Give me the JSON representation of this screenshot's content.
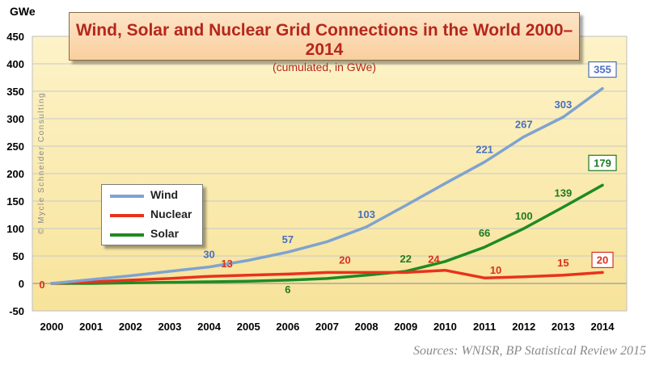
{
  "chart_data": {
    "type": "line",
    "title": "Wind, Solar and Nuclear Grid Connections in the World 2000–2014",
    "subtitle": "(cumulated, in GWe)",
    "ylabel": "GWe",
    "ylim": [
      -50,
      450
    ],
    "yticks": [
      -50,
      0,
      50,
      100,
      150,
      200,
      250,
      300,
      350,
      400,
      450
    ],
    "categories": [
      "2000",
      "2001",
      "2002",
      "2003",
      "2004",
      "2005",
      "2006",
      "2007",
      "2008",
      "2009",
      "2010",
      "2011",
      "2012",
      "2013",
      "2014"
    ],
    "grid": "horizontal",
    "legend_position": "left-middle",
    "background_color": "#fbeeb3",
    "series": [
      {
        "name": "Wind",
        "color": "#7fa3cf",
        "values": [
          0,
          7,
          14,
          22,
          30,
          42,
          57,
          76,
          103,
          142,
          182,
          221,
          267,
          303,
          355
        ]
      },
      {
        "name": "Nuclear",
        "color": "#e8321e",
        "values": [
          0,
          3,
          6,
          9,
          13,
          15,
          17,
          20,
          20,
          20,
          24,
          10,
          12,
          15,
          20
        ]
      },
      {
        "name": "Solar",
        "color": "#1e8b22",
        "values": [
          0,
          0,
          1,
          2,
          3,
          4,
          6,
          9,
          15,
          22,
          40,
          66,
          100,
          139,
          179
        ]
      }
    ],
    "data_labels": [
      {
        "series": "Nuclear",
        "x": "2000",
        "y": 0,
        "text": "0",
        "color": "#d8321f",
        "boxed": false
      },
      {
        "series": "Wind",
        "x": "2004",
        "y": 30,
        "text": "30",
        "color": "#4a6fbf",
        "boxed": false
      },
      {
        "series": "Wind",
        "x": "2006",
        "y": 57,
        "text": "57",
        "color": "#4a6fbf",
        "boxed": false
      },
      {
        "series": "Wind",
        "x": "2008",
        "y": 103,
        "text": "103",
        "color": "#4a6fbf",
        "boxed": false
      },
      {
        "series": "Wind",
        "x": "2011",
        "y": 221,
        "text": "221",
        "color": "#4a6fbf",
        "boxed": false
      },
      {
        "series": "Wind",
        "x": "2012",
        "y": 267,
        "text": "267",
        "color": "#4a6fbf",
        "boxed": false
      },
      {
        "series": "Wind",
        "x": "2013",
        "y": 303,
        "text": "303",
        "color": "#4a6fbf",
        "boxed": false
      },
      {
        "series": "Wind",
        "x": "2014",
        "y": 355,
        "text": "355",
        "color": "#4a6fbf",
        "boxed": true
      },
      {
        "series": "Nuclear",
        "x": "2004",
        "y": 13,
        "text": "13",
        "color": "#d8321f",
        "boxed": false
      },
      {
        "series": "Nuclear",
        "x": "2007",
        "y": 20,
        "text": "20",
        "color": "#d8321f",
        "boxed": false
      },
      {
        "series": "Nuclear",
        "x": "2010",
        "y": 24,
        "text": "24",
        "color": "#d8321f",
        "boxed": false
      },
      {
        "series": "Nuclear",
        "x": "2011",
        "y": 10,
        "text": "10",
        "color": "#d8321f",
        "boxed": false
      },
      {
        "series": "Nuclear",
        "x": "2013",
        "y": 15,
        "text": "15",
        "color": "#d8321f",
        "boxed": false
      },
      {
        "series": "Nuclear",
        "x": "2014",
        "y": 20,
        "text": "20",
        "color": "#d8321f",
        "boxed": true
      },
      {
        "series": "Solar",
        "x": "2006",
        "y": 6,
        "text": "6",
        "color": "#1e7a22",
        "boxed": false
      },
      {
        "series": "Solar",
        "x": "2009",
        "y": 22,
        "text": "22",
        "color": "#1e7a22",
        "boxed": false
      },
      {
        "series": "Solar",
        "x": "2011",
        "y": 66,
        "text": "66",
        "color": "#1e7a22",
        "boxed": false
      },
      {
        "series": "Solar",
        "x": "2012",
        "y": 100,
        "text": "100",
        "color": "#1e7a22",
        "boxed": false
      },
      {
        "series": "Solar",
        "x": "2013",
        "y": 139,
        "text": "139",
        "color": "#1e7a22",
        "boxed": false
      },
      {
        "series": "Solar",
        "x": "2014",
        "y": 179,
        "text": "179",
        "color": "#1e7a22",
        "boxed": true
      }
    ]
  },
  "legend": {
    "wind_label": "Wind",
    "nuclear_label": "Nuclear",
    "solar_label": "Solar"
  },
  "watermark": "© Mycle Schneider Consulting",
  "source": "Sources: WNISR, BP Statistical Review 2015"
}
